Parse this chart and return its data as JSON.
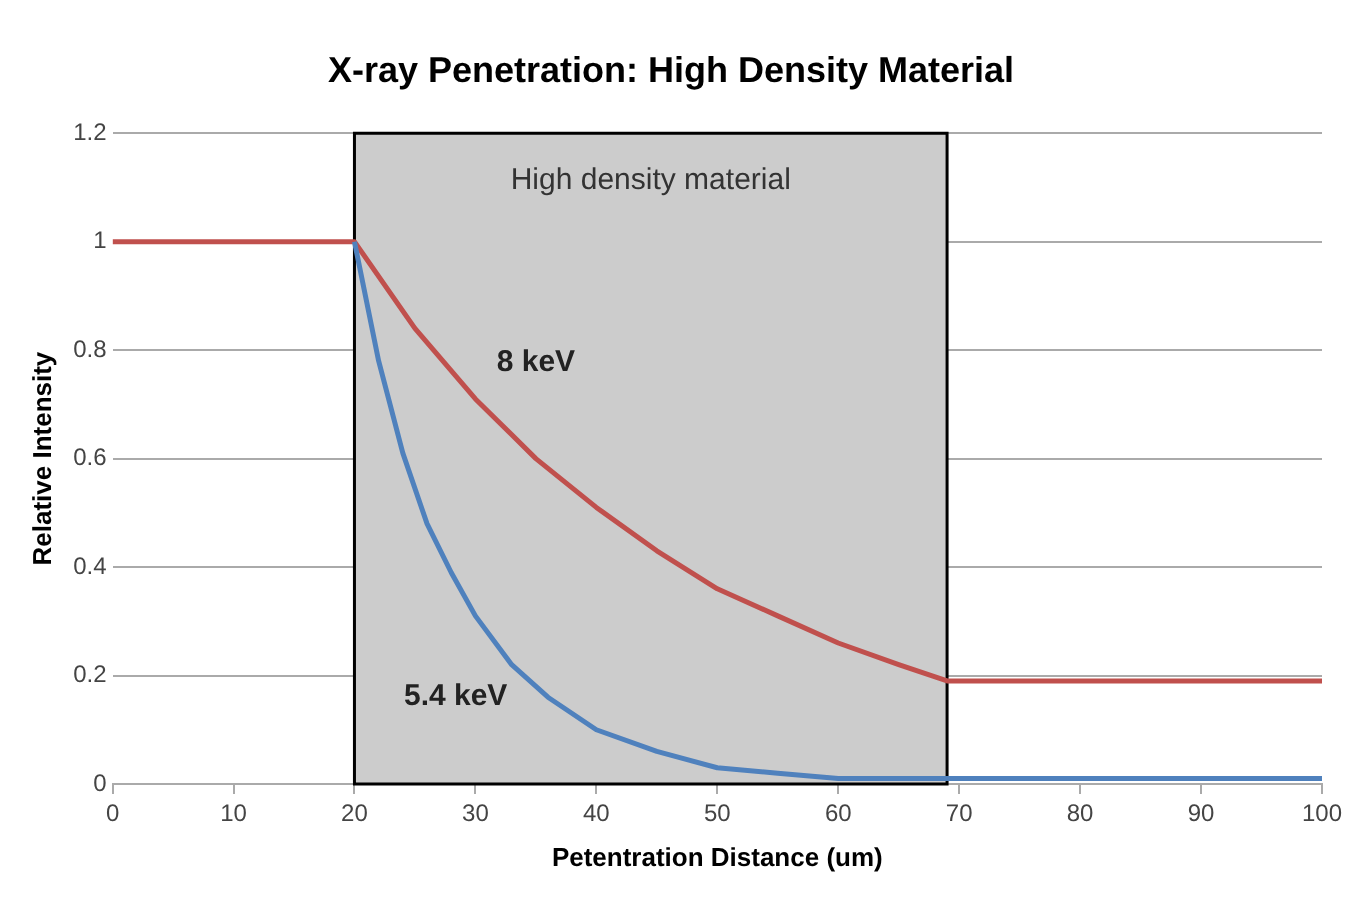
{
  "chart_data": {
    "type": "line",
    "title": "X-ray Penetration: High Density Material",
    "xlabel": "Petentration Distance (um)",
    "ylabel": "Relative Intensity",
    "series": [
      {
        "name": "8 keV",
        "color": "#c0504d",
        "x": [
          0,
          20,
          25,
          30,
          35,
          40,
          45,
          50,
          55,
          60,
          65,
          69,
          70,
          100
        ],
        "values": [
          1,
          1,
          0.84,
          0.71,
          0.6,
          0.51,
          0.43,
          0.36,
          0.31,
          0.26,
          0.22,
          0.19,
          0.19,
          0.19
        ]
      },
      {
        "name": "5.4 keV",
        "color": "#4f81bd",
        "x": [
          20,
          22,
          24,
          26,
          28,
          30,
          33,
          36,
          40,
          45,
          50,
          55,
          60,
          69,
          100
        ],
        "values": [
          1,
          0.78,
          0.61,
          0.48,
          0.39,
          0.31,
          0.22,
          0.16,
          0.1,
          0.06,
          0.03,
          0.02,
          0.01,
          0.01,
          0.01
        ]
      }
    ],
    "bands": [
      {
        "axis": "x",
        "from": 20,
        "to": 69,
        "label": "High density material",
        "color": "#cccccc"
      }
    ],
    "xlim": [
      0,
      100
    ],
    "xticks": [
      0,
      10,
      20,
      30,
      40,
      50,
      60,
      70,
      80,
      90,
      100
    ],
    "ylim": [
      0,
      1.2
    ],
    "yticks": [
      0,
      0.2,
      0.4,
      0.6,
      0.8,
      1,
      1.2
    ],
    "grid": "y",
    "legend": false,
    "marker": "none",
    "line_style": "solid"
  }
}
